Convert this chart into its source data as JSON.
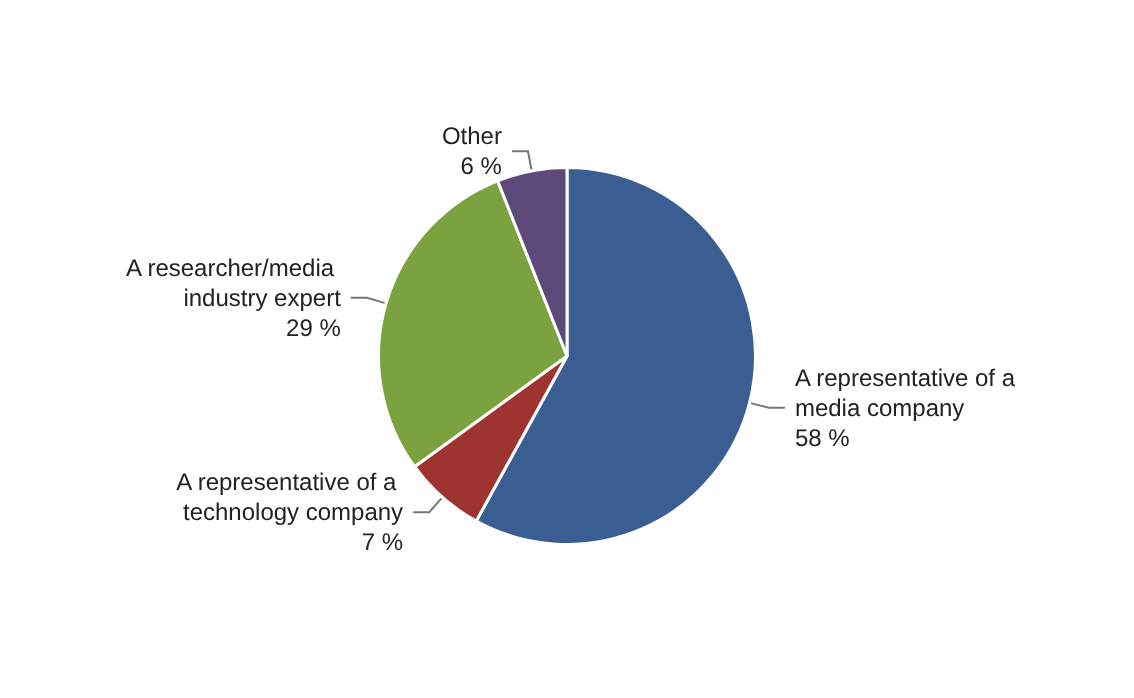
{
  "chart_data": {
    "type": "pie",
    "categories": [
      "A representative of a media company",
      "A representative of a technology company",
      "A researcher/media industry expert",
      "Other"
    ],
    "values": [
      58,
      7,
      29,
      6
    ],
    "value_labels": [
      "58 %",
      "7 %",
      "29 %",
      "6 %"
    ],
    "colors": [
      "#3a5e92",
      "#9e3330",
      "#7aa23e",
      "#5e497b"
    ],
    "legend": false
  }
}
